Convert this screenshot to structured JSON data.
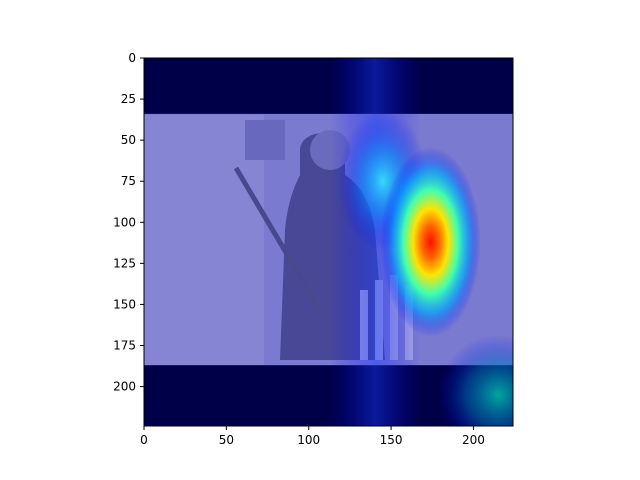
{
  "chart_data": {
    "type": "heatmap",
    "image_size": [
      224,
      224
    ],
    "xlim": [
      0,
      224
    ],
    "ylim": [
      224,
      0
    ],
    "xticks": [
      0,
      50,
      100,
      150,
      200
    ],
    "yticks": [
      0,
      25,
      50,
      75,
      100,
      125,
      150,
      175,
      200
    ],
    "xtick_labels": [
      "0",
      "50",
      "100",
      "150",
      "200"
    ],
    "ytick_labels": [
      "0",
      "25",
      "50",
      "75",
      "100",
      "125",
      "150",
      "175",
      "200"
    ],
    "colormap": "jet",
    "hotspot": {
      "x": 174,
      "y": 112,
      "intensity": 1.0
    },
    "secondary_regions": [
      {
        "x": 145,
        "y": 75,
        "intensity": 0.55
      },
      {
        "x": 215,
        "y": 205,
        "intensity": 0.45
      }
    ],
    "photo_region_y": [
      34,
      187
    ],
    "title": "",
    "xlabel": "",
    "ylabel": "",
    "grid": false,
    "legend": "none"
  },
  "colors": {
    "colormap_low": "#00007f",
    "colormap_mid": "#00ffff",
    "colormap_high": "#ff0000",
    "band": "#000048",
    "photo_tint": "#7a7ad0",
    "axis": "#000000"
  }
}
